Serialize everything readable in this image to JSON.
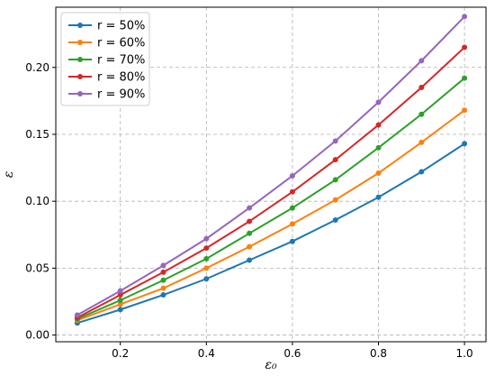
{
  "chart_data": {
    "type": "line",
    "xlabel": "ε₀",
    "ylabel": "ε",
    "xlim": [
      0.05,
      1.05
    ],
    "ylim": [
      -0.005,
      0.245
    ],
    "xticks": [
      "0.2",
      "0.4",
      "0.6",
      "0.8",
      "1.0"
    ],
    "xtick_values": [
      0.2,
      0.4,
      0.6,
      0.8,
      1.0
    ],
    "yticks": [
      "0.00",
      "0.05",
      "0.10",
      "0.15",
      "0.20"
    ],
    "ytick_values": [
      0.0,
      0.05,
      0.1,
      0.15,
      0.2
    ],
    "grid": true,
    "legend_position": "top-left",
    "x": [
      0.1,
      0.2,
      0.3,
      0.4,
      0.5,
      0.6,
      0.7,
      0.8,
      0.9,
      1.0
    ],
    "series": [
      {
        "name": "r = 50%",
        "color": "#1f77b4",
        "values": [
          0.009,
          0.019,
          0.03,
          0.042,
          0.056,
          0.07,
          0.086,
          0.103,
          0.122,
          0.143
        ]
      },
      {
        "name": "r = 60%",
        "color": "#ff7f0e",
        "values": [
          0.011,
          0.023,
          0.035,
          0.05,
          0.066,
          0.083,
          0.101,
          0.121,
          0.144,
          0.168
        ]
      },
      {
        "name": "r = 70%",
        "color": "#2ca02c",
        "values": [
          0.012,
          0.026,
          0.041,
          0.057,
          0.076,
          0.095,
          0.116,
          0.14,
          0.165,
          0.192
        ]
      },
      {
        "name": "r = 80%",
        "color": "#d62728",
        "values": [
          0.013,
          0.03,
          0.047,
          0.065,
          0.085,
          0.107,
          0.131,
          0.157,
          0.185,
          0.215
        ]
      },
      {
        "name": "r = 90%",
        "color": "#9467bd",
        "values": [
          0.015,
          0.033,
          0.052,
          0.072,
          0.095,
          0.119,
          0.145,
          0.174,
          0.205,
          0.238
        ]
      }
    ]
  }
}
